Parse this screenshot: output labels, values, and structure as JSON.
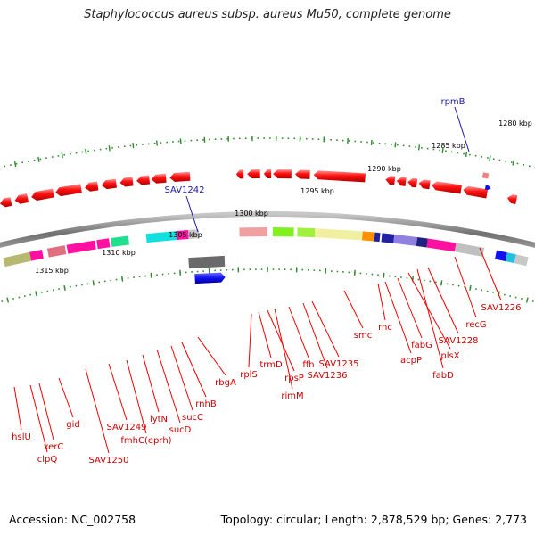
{
  "title": "Staphylococcus aureus subsp. aureus Mu50, complete genome",
  "footer": {
    "accession": "Accession: NC_002758",
    "summary": "Topology: circular; Length: 2,878,529 bp; Genes: 2,773"
  },
  "ruler": {
    "unit": "kbp",
    "labels": [
      "1280 kbp",
      "1285 kbp",
      "1290 kbp",
      "1295 kbp",
      "1300 kbp",
      "1305 kbp",
      "1310 kbp",
      "1315 kbp"
    ]
  },
  "genes": {
    "blue": [
      "rpmB",
      "SAV1242"
    ],
    "red": [
      "hslU",
      "xerC",
      "clpQ",
      "gid",
      "SAV1250",
      "SAV1249",
      "fmhC(eprh)",
      "lytN",
      "sucD",
      "sucC",
      "rnhB",
      "rbgA",
      "rplS",
      "trmD",
      "rpsP",
      "rimM",
      "ffh",
      "SAV1236",
      "SAV1235",
      "smc",
      "rnc",
      "acpP",
      "fabG",
      "plsX",
      "fabD",
      "SAV1228",
      "recG",
      "SAV1226"
    ]
  },
  "colors": {
    "backbone": "#7a7a7a",
    "tick_dots": "#2e8b2e",
    "gene_red": "#ee0000",
    "gene_blue": "#1a1aa6",
    "label_red": "#cc0000"
  }
}
